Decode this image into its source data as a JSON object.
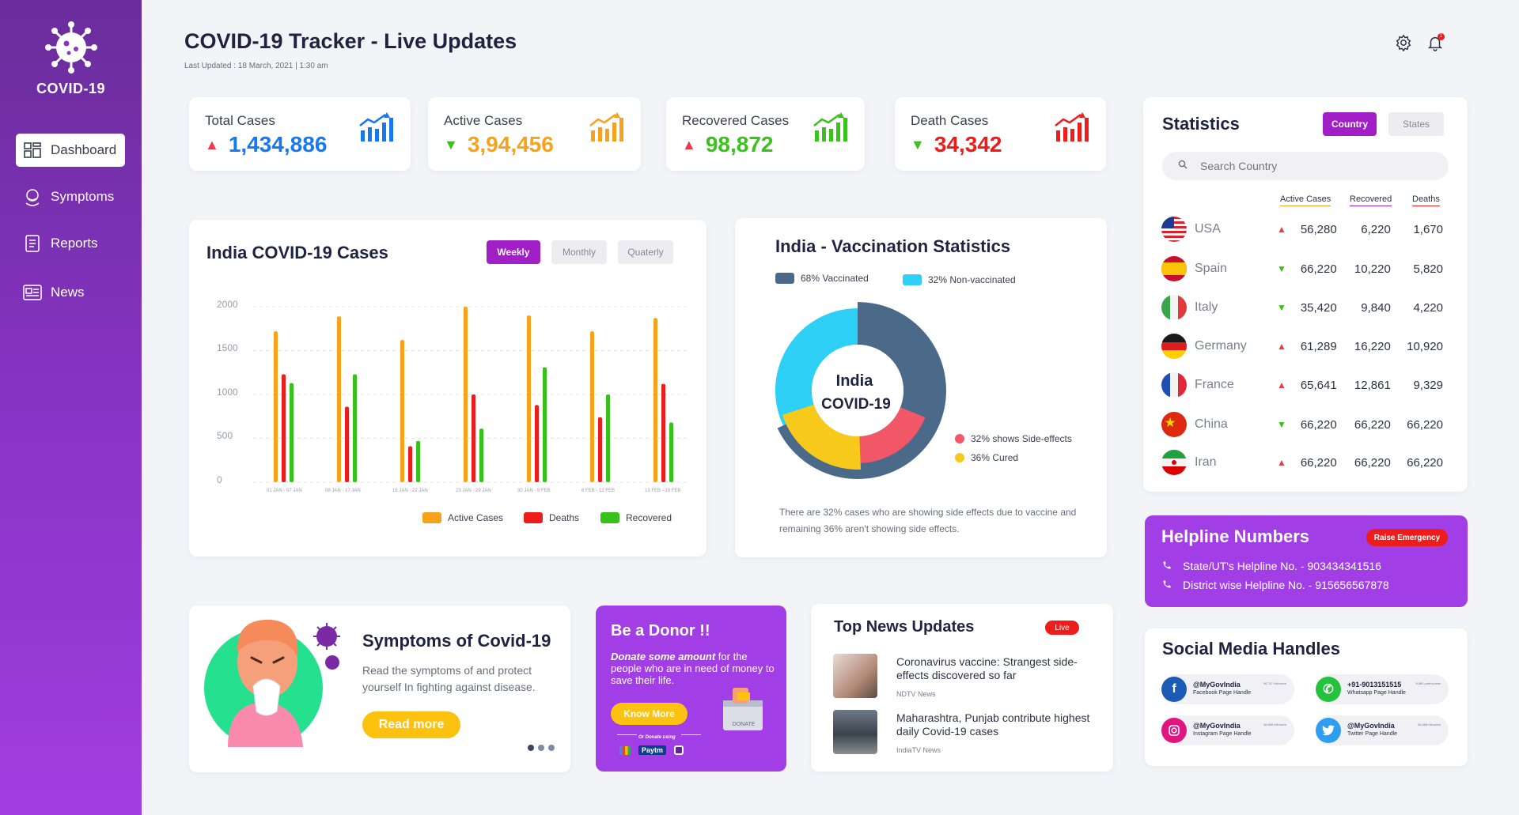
{
  "app": {
    "logo_text": "COVID-19"
  },
  "sidebar": {
    "items": [
      {
        "label": "Dashboard",
        "icon": "dashboard-icon"
      },
      {
        "label": "Symptoms",
        "icon": "symptoms-icon"
      },
      {
        "label": "Reports",
        "icon": "reports-icon"
      },
      {
        "label": "News",
        "icon": "news-icon"
      }
    ]
  },
  "header": {
    "title": "COVID-19 Tracker - Live Updates",
    "subtitle": "Last Updated : 18 March, 2021 | 1:30 am",
    "notification_badge": "1"
  },
  "stats": [
    {
      "label": "Total Cases",
      "value": "1,434,886",
      "trend": "up",
      "color": "#1877f2",
      "arrow_color": "#f2394b"
    },
    {
      "label": "Active Cases",
      "value": "3,94,456",
      "trend": "down",
      "color": "#f7a21b",
      "arrow_color": "#39c21a"
    },
    {
      "label": "Recovered Cases",
      "value": "98,872",
      "trend": "up",
      "color": "#39c21a",
      "arrow_color": "#f2394b"
    },
    {
      "label": "Death Cases",
      "value": "34,342",
      "trend": "down",
      "color": "#ef1c1c",
      "arrow_color": "#39c21a"
    }
  ],
  "cases_chart": {
    "title": "India COVID-19 Cases",
    "tabs": [
      "Weekly",
      "Monthly",
      "Quaterly"
    ],
    "active_tab": "Weekly"
  },
  "chart_data": {
    "type": "bar",
    "title": "India COVID-19 Cases",
    "categories": [
      "01 JAN - 07 JAN",
      "08 JAN - 17 JAN",
      "16 JAN - 22 JAN",
      "23 JAN - 29 JAN",
      "30 JAN - 5 FEB",
      "6 FEB - 12 FEB",
      "13 FEB - 19 FEB"
    ],
    "y_ticks": [
      "2000",
      "1500",
      "1000",
      "500",
      "0"
    ],
    "ylim": [
      0,
      2000
    ],
    "grid": true,
    "legend_position": "bottom-right",
    "series": [
      {
        "name": "Active Cases",
        "color": "#f7a21b",
        "values": [
          1720,
          1890,
          1620,
          2000,
          1900,
          1720,
          1870
        ]
      },
      {
        "name": "Deaths",
        "color": "#ef1c1c",
        "values": [
          1230,
          860,
          410,
          1000,
          880,
          740,
          1120
        ]
      },
      {
        "name": "Recovered",
        "color": "#36c21a",
        "values": [
          1130,
          1230,
          470,
          610,
          1310,
          1000,
          680
        ]
      }
    ]
  },
  "vaccination": {
    "title": "India - Vaccination Statistics",
    "center_line1": "India",
    "center_line2": "COVID-19",
    "legend": [
      {
        "label": "68% Vaccinated",
        "color": "#4b6a8a"
      },
      {
        "label": "32% Non-vaccinated",
        "color": "#2fd0f5"
      }
    ],
    "inner_legend": [
      {
        "label": "32% shows Side-effects",
        "color": "#f25767"
      },
      {
        "label": "36% Cured",
        "color": "#f7c91b"
      }
    ],
    "note": "There are 32% cases who are showing side effects due to vaccine and remaining 36% aren't showing side effects.",
    "outer_values": [
      68,
      32
    ],
    "inner_values": [
      32,
      36,
      32
    ]
  },
  "statistics": {
    "title": "Statistics",
    "tabs": [
      "Country",
      "States"
    ],
    "active_tab": "Country",
    "search_placeholder": "Search Country",
    "columns": [
      {
        "label": "Active Cases",
        "color": "#f7a21b"
      },
      {
        "label": "Recovered",
        "color": "#a21fc7"
      },
      {
        "label": "Deaths",
        "color": "#ef1c1c"
      }
    ],
    "rows": [
      {
        "country": "USA",
        "trend": "up",
        "active": "56,280",
        "recovered": "6,220",
        "deaths": "1,670"
      },
      {
        "country": "Spain",
        "trend": "down",
        "active": "66,220",
        "recovered": "10,220",
        "deaths": "5,820"
      },
      {
        "country": "Italy",
        "trend": "down",
        "active": "35,420",
        "recovered": "9,840",
        "deaths": "4,220"
      },
      {
        "country": "Germany",
        "trend": "up",
        "active": "61,289",
        "recovered": "16,220",
        "deaths": "10,920"
      },
      {
        "country": "France",
        "trend": "up",
        "active": "65,641",
        "recovered": "12,861",
        "deaths": "9,329"
      },
      {
        "country": "China",
        "trend": "down",
        "active": "66,220",
        "recovered": "66,220",
        "deaths": "66,220"
      },
      {
        "country": "Iran",
        "trend": "up",
        "active": "66,220",
        "recovered": "66,220",
        "deaths": "66,220"
      }
    ]
  },
  "helpline": {
    "title": "Helpline Numbers",
    "button": "Raise Emergency",
    "lines": [
      "State/UT's Helpline No. - 903434341516",
      "District wise Helpline No. - 915656567878"
    ]
  },
  "symptoms_card": {
    "title": "Symptoms of Covid-19",
    "text": "Read the symptoms of and protect yourself In fighting against disease.",
    "button": "Read more"
  },
  "donor": {
    "title": "Be a Donor !!",
    "text_em": "Donate some amount",
    "text_rest": " for the people who are in need of money to save their life.",
    "button": "Know More",
    "or_text": "Or Donate using",
    "box_label": "DONATE",
    "paytm": "Paytm"
  },
  "news": {
    "title": "Top News Updates",
    "badge": "Live",
    "items": [
      {
        "title": "Coronavirus vaccine: Strangest side-effects discovered so far",
        "source": "NDTV News"
      },
      {
        "title": "Maharashtra, Punjab contribute highest daily Covid-19 cases",
        "source": "IndiaTV News"
      }
    ]
  },
  "social": {
    "title": "Social Media Handles",
    "items": [
      {
        "handle": "@MyGovIndia",
        "sub": "Facebook Page Handle",
        "followers": "56,787 followers",
        "color": "#1c5bb4",
        "icon": "facebook-icon"
      },
      {
        "handle": "+91-9013151515",
        "sub": "Whatsapp Page Handle",
        "followers": "8,880 participants",
        "color": "#25c23e",
        "icon": "whatsapp-icon"
      },
      {
        "handle": "@MyGovIndia",
        "sub": "Instagram Page Handle",
        "followers": "36,888 followers",
        "color": "#e0157f",
        "icon": "instagram-icon"
      },
      {
        "handle": "@MyGovIndia",
        "sub": "Twitter Page Handle",
        "followers": "36,888 followers",
        "color": "#2f9ef0",
        "icon": "twitter-icon"
      }
    ]
  }
}
